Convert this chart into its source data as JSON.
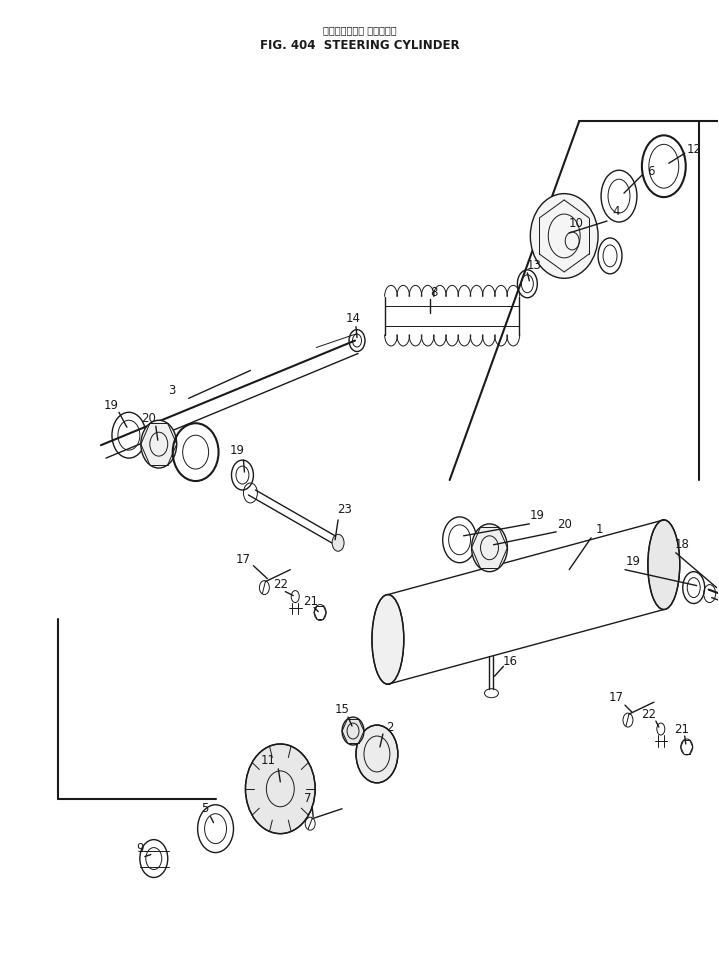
{
  "title_jp": "ステアリングゝ シリンダゝ",
  "title_en": "FIG. 404  STEERING CYLINDER",
  "bg_color": "#ffffff",
  "fig_width": 7.19,
  "fig_height": 9.72,
  "dpi": 100
}
